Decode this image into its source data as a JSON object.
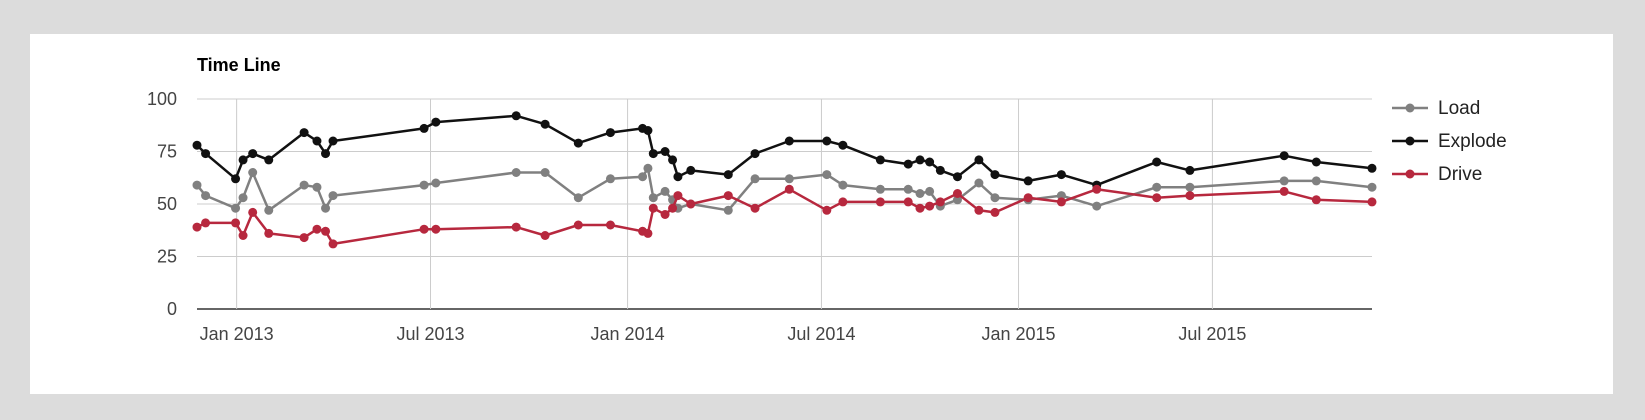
{
  "chart_data": {
    "type": "line",
    "title": "Time Line",
    "xlabel": "",
    "ylabel": "",
    "ylim": [
      0,
      100
    ],
    "xlim": [
      "2012-11-25",
      "2015-11-27"
    ],
    "yticks": [
      0,
      25,
      50,
      75,
      100
    ],
    "xticks": [
      {
        "date": "2013-01-01",
        "label": "Jan 2013"
      },
      {
        "date": "2013-07-01",
        "label": "Jul 2013"
      },
      {
        "date": "2014-01-01",
        "label": "Jan 2014"
      },
      {
        "date": "2014-07-01",
        "label": "Jul 2014"
      },
      {
        "date": "2015-01-01",
        "label": "Jan 2015"
      },
      {
        "date": "2015-07-01",
        "label": "Jul 2015"
      }
    ],
    "grid": true,
    "legend_position": "right",
    "x": [
      "2012-11-25",
      "2012-12-03",
      "2012-12-31",
      "2013-01-07",
      "2013-01-16",
      "2013-01-31",
      "2013-03-05",
      "2013-03-17",
      "2013-03-25",
      "2013-04-01",
      "2013-06-25",
      "2013-07-06",
      "2013-09-19",
      "2013-10-16",
      "2013-11-16",
      "2013-12-16",
      "2014-01-15",
      "2014-01-20",
      "2014-01-25",
      "2014-02-05",
      "2014-02-12",
      "2014-02-17",
      "2014-03-01",
      "2014-04-05",
      "2014-04-30",
      "2014-06-01",
      "2014-07-06",
      "2014-07-21",
      "2014-08-25",
      "2014-09-20",
      "2014-10-01",
      "2014-10-10",
      "2014-10-20",
      "2014-11-05",
      "2014-11-25",
      "2014-12-10",
      "2015-01-10",
      "2015-02-10",
      "2015-03-15",
      "2015-05-10",
      "2015-06-10",
      "2015-09-06",
      "2015-10-06",
      "2015-11-27"
    ],
    "series": [
      {
        "name": "Load",
        "color": "#808080",
        "values": [
          59,
          54,
          48,
          53,
          65,
          47,
          59,
          58,
          48,
          54,
          59,
          60,
          65,
          65,
          53,
          62,
          63,
          67,
          53,
          56,
          52,
          48,
          50,
          47,
          62,
          62,
          64,
          59,
          57,
          57,
          55,
          56,
          49,
          52,
          60,
          53,
          52,
          54,
          49,
          58,
          58,
          61,
          61,
          58
        ]
      },
      {
        "name": "Explode",
        "color": "#111111",
        "values": [
          78,
          74,
          62,
          71,
          74,
          71,
          84,
          80,
          74,
          80,
          86,
          89,
          92,
          88,
          79,
          84,
          86,
          85,
          74,
          75,
          71,
          63,
          66,
          64,
          74,
          80,
          80,
          78,
          71,
          69,
          71,
          70,
          66,
          63,
          71,
          64,
          61,
          64,
          59,
          70,
          66,
          73,
          70,
          67
        ]
      },
      {
        "name": "Drive",
        "color": "#b7283e",
        "values": [
          39,
          41,
          41,
          35,
          46,
          36,
          34,
          38,
          37,
          31,
          38,
          38,
          39,
          35,
          40,
          40,
          37,
          36,
          48,
          45,
          48,
          54,
          50,
          54,
          48,
          57,
          47,
          51,
          51,
          51,
          48,
          49,
          51,
          55,
          47,
          46,
          53,
          51,
          57,
          53,
          54,
          56,
          52,
          51
        ]
      }
    ]
  }
}
